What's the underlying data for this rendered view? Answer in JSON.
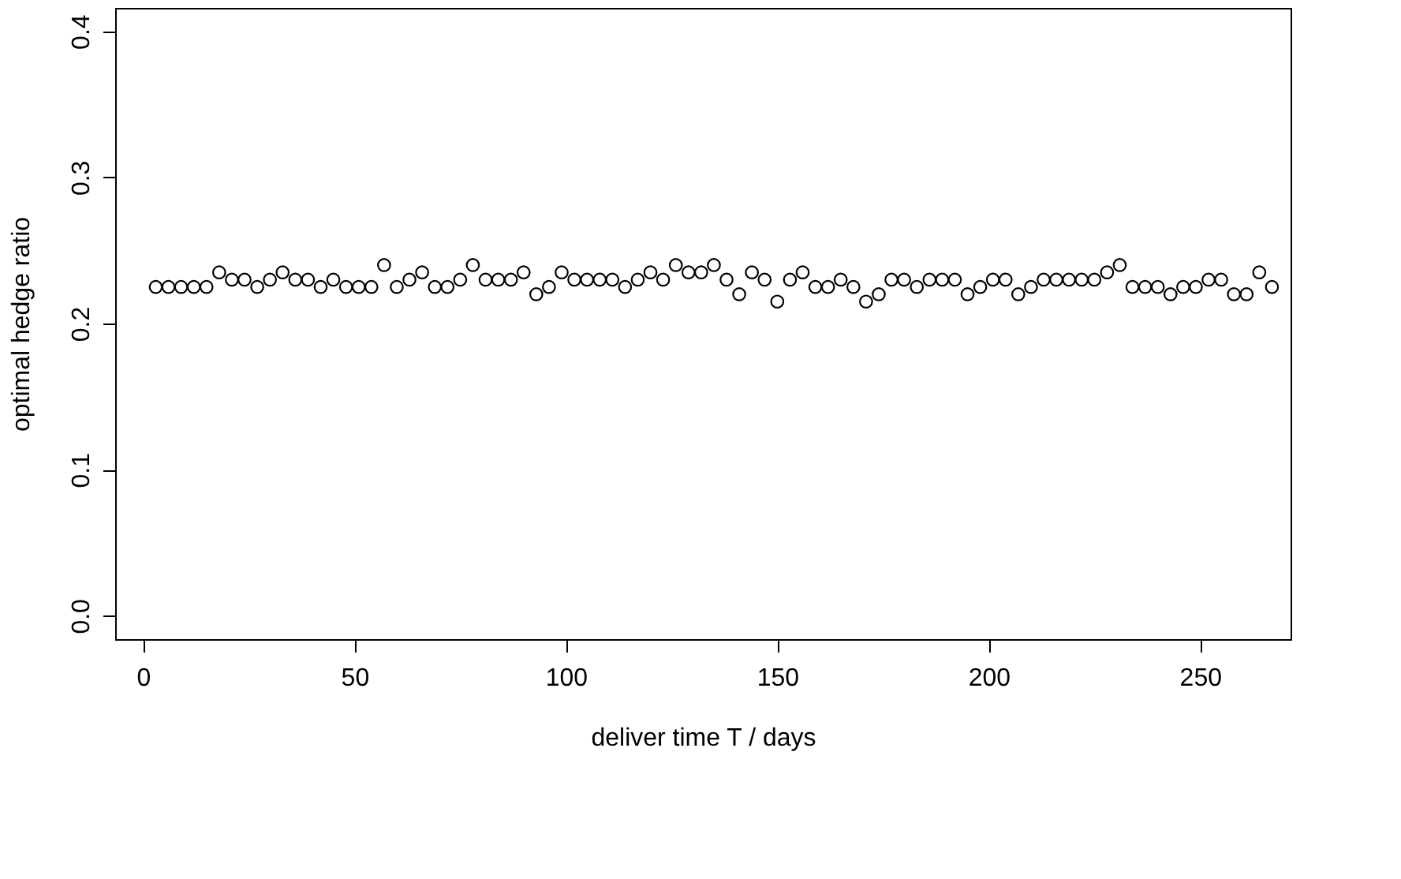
{
  "chart_data": {
    "type": "scatter",
    "xlabel": "deliver time T / days",
    "ylabel": "optimal hedge ratio",
    "xlim": [
      -6.6,
      271.4
    ],
    "ylim": [
      -0.016,
      0.416
    ],
    "xticks": [
      0,
      50,
      100,
      150,
      200,
      250
    ],
    "yticks": [
      {
        "value": 0,
        "label": "0.0"
      },
      0.1,
      0.2,
      0.3,
      0.4
    ],
    "grid": false,
    "marker": "circle",
    "x": [
      3,
      6,
      9,
      12,
      15,
      18,
      21,
      24,
      27,
      30,
      33,
      36,
      39,
      42,
      45,
      48,
      51,
      54,
      57,
      60,
      63,
      66,
      69,
      72,
      75,
      78,
      81,
      84,
      87,
      90,
      93,
      96,
      99,
      102,
      105,
      108,
      111,
      114,
      117,
      120,
      123,
      126,
      129,
      132,
      135,
      138,
      141,
      144,
      147,
      150,
      153,
      156,
      159,
      162,
      165,
      168,
      171,
      174,
      177,
      180,
      183,
      186,
      189,
      192,
      195,
      198,
      201,
      204,
      207,
      210,
      213,
      216,
      219,
      222,
      225,
      228,
      231,
      234,
      237,
      240,
      243,
      246,
      249,
      252,
      255,
      258,
      261,
      264,
      267
    ],
    "series": [
      {
        "color": "#000000",
        "values": [
          0.225,
          0.225,
          0.225,
          0.225,
          0.225,
          0.235,
          0.23,
          0.23,
          0.225,
          0.23,
          0.235,
          0.23,
          0.23,
          0.225,
          0.23,
          0.225,
          0.225,
          0.225,
          0.24,
          0.225,
          0.23,
          0.235,
          0.225,
          0.225,
          0.23,
          0.24,
          0.23,
          0.23,
          0.23,
          0.235,
          0.22,
          0.225,
          0.235,
          0.23,
          0.23,
          0.23,
          0.23,
          0.225,
          0.23,
          0.235,
          0.23,
          0.24,
          0.235,
          0.235,
          0.24,
          0.23,
          0.22,
          0.235,
          0.23,
          0.215,
          0.23,
          0.235,
          0.225,
          0.225,
          0.23,
          0.225,
          0.215,
          0.22,
          0.23,
          0.23,
          0.225,
          0.23,
          0.23,
          0.23,
          0.22,
          0.225,
          0.23,
          0.23,
          0.22,
          0.225,
          0.23,
          0.23,
          0.23,
          0.23,
          0.23,
          0.235,
          0.24,
          0.225,
          0.225,
          0.225,
          0.22,
          0.225,
          0.225,
          0.23,
          0.23,
          0.22,
          0.22,
          0.235,
          0.225
        ]
      }
    ]
  }
}
